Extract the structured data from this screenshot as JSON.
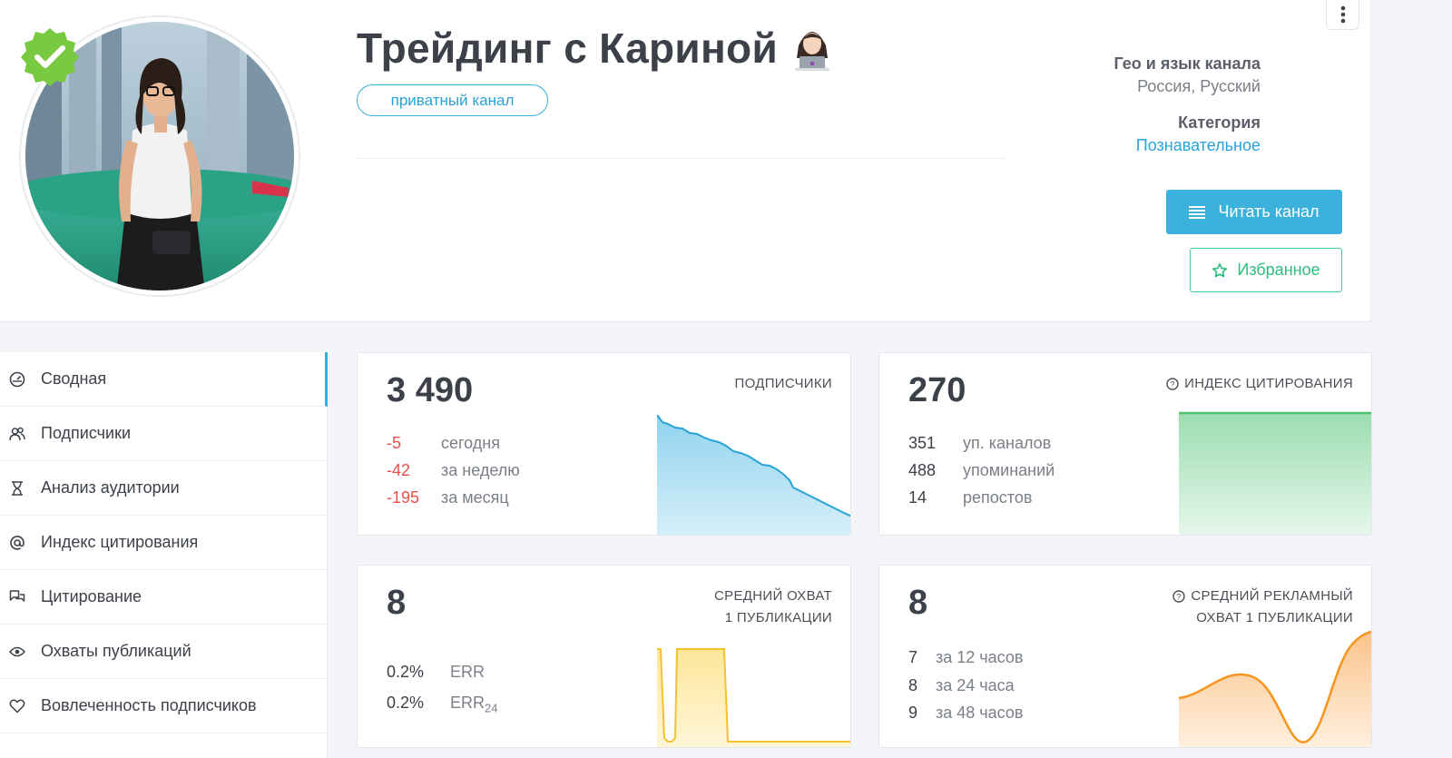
{
  "channel": {
    "title": "Трейдинг с Кариной",
    "type_badge": "приватный канал",
    "geo_label": "Гео и язык канала",
    "geo_value": "Россия, Русский",
    "category_label": "Категория",
    "category_value": "Познавательное"
  },
  "actions": {
    "read_label": "Читать канал",
    "favorite_label": "Избранное"
  },
  "sidebar": {
    "items": [
      {
        "label": "Сводная",
        "icon": "dashboard-icon"
      },
      {
        "label": "Подписчики",
        "icon": "users-icon"
      },
      {
        "label": "Анализ аудитории",
        "icon": "hourglass-icon"
      },
      {
        "label": "Индекс цитирования",
        "icon": "at-icon"
      },
      {
        "label": "Цитирование",
        "icon": "chat-icon"
      },
      {
        "label": "Охваты публикаций",
        "icon": "eye-icon"
      },
      {
        "label": "Вовлеченность подписчиков",
        "icon": "heart-icon"
      }
    ]
  },
  "cards": {
    "subscribers": {
      "title": "ПОДПИСЧИКИ",
      "value": "3 490",
      "rows": [
        {
          "value": "-5",
          "label": "сегодня"
        },
        {
          "value": "-42",
          "label": "за неделю"
        },
        {
          "value": "-195",
          "label": "за месяц"
        }
      ]
    },
    "citation": {
      "title": "ИНДЕКС ЦИТИРОВАНИЯ",
      "value": "270",
      "rows": [
        {
          "value": "351",
          "label": "уп. каналов"
        },
        {
          "value": "488",
          "label": "упоминаний"
        },
        {
          "value": "14",
          "label": "репостов"
        }
      ]
    },
    "reach": {
      "title_line1": "СРЕДНИЙ ОХВАТ",
      "title_line2": "1 ПУБЛИКАЦИИ",
      "value": "8",
      "err_value": "0.2%",
      "err_label": "ERR",
      "err24_value": "0.2%",
      "err24_label": "ERR",
      "err24_sub": "24"
    },
    "ad_reach": {
      "title_line1": "СРЕДНИЙ РЕКЛАМНЫЙ",
      "title_line2": "ОХВАТ 1 ПУБЛИКАЦИИ",
      "value": "8",
      "rows": [
        {
          "value": "7",
          "label": "за 12 часов"
        },
        {
          "value": "8",
          "label": "за 24 часа"
        },
        {
          "value": "9",
          "label": "за 48 часов"
        }
      ]
    }
  },
  "colors": {
    "accent_blue": "#3bb1db",
    "accent_green": "#3fcf92",
    "negative_red": "#e8504d",
    "spark_blue": "#29a3d6",
    "spark_green": "#4cc26c",
    "spark_yellow": "#f5c12e",
    "spark_orange": "#f7941d"
  }
}
